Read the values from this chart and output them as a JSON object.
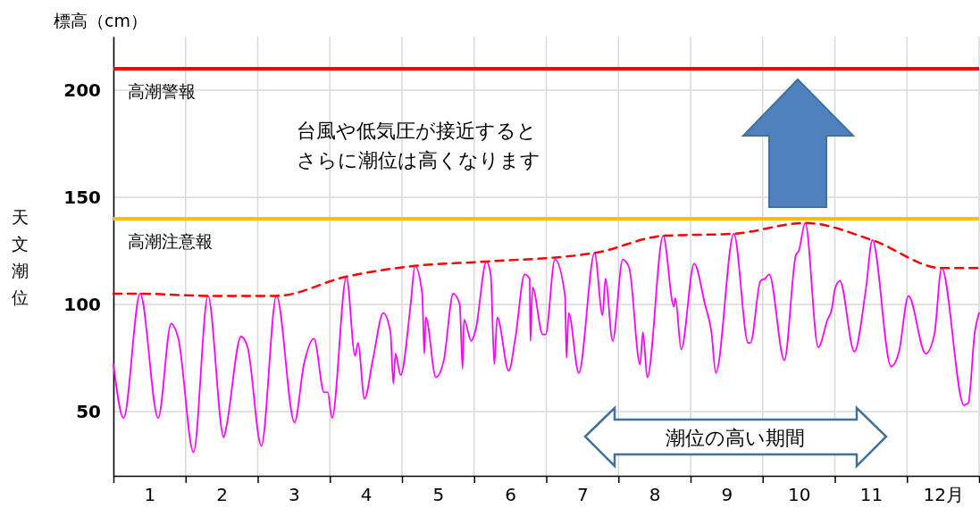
{
  "chart_data": {
    "type": "line",
    "ylabel": "天文潮位",
    "annotations": [
      "標高（cm）",
      "台風や低気圧が接近すると",
      "さらに潮位は高くなります",
      "潮位の高い期間"
    ],
    "xlim": [
      0,
      12
    ],
    "xticks": [
      {
        "value": 0,
        "label": null
      },
      {
        "value": 0.5,
        "label": "1"
      },
      {
        "value": 1,
        "label": null
      },
      {
        "value": 1.5,
        "label": "2"
      },
      {
        "value": 2,
        "label": null
      },
      {
        "value": 2.5,
        "label": "3"
      },
      {
        "value": 3,
        "label": null
      },
      {
        "value": 3.5,
        "label": "4"
      },
      {
        "value": 4,
        "label": null
      },
      {
        "value": 4.5,
        "label": "5"
      },
      {
        "value": 5,
        "label": null
      },
      {
        "value": 5.5,
        "label": "6"
      },
      {
        "value": 6,
        "label": null
      },
      {
        "value": 6.5,
        "label": "7"
      },
      {
        "value": 7,
        "label": null
      },
      {
        "value": 7.5,
        "label": "8"
      },
      {
        "value": 8,
        "label": null
      },
      {
        "value": 8.5,
        "label": "9"
      },
      {
        "value": 9,
        "label": null
      },
      {
        "value": 9.5,
        "label": "10"
      },
      {
        "value": 10,
        "label": null
      },
      {
        "value": 10.5,
        "label": "11"
      },
      {
        "value": 11,
        "label": null
      },
      {
        "value": 11.5,
        "label": "12月"
      },
      {
        "value": 12,
        "label": null
      }
    ],
    "ylim": [
      20,
      225
    ],
    "yticks": [
      50,
      100,
      150,
      200
    ],
    "grid": true,
    "ref_lines": [
      {
        "axis": "y",
        "value": 210,
        "label": "高潮警報",
        "color": "#ff0000"
      },
      {
        "axis": "y",
        "value": 140,
        "label": "高潮注意報",
        "color": "#ffc000"
      }
    ],
    "series": [
      {
        "color": "#ff00ff",
        "x": [
          0,
          0.14,
          0.37,
          0.62,
          0.8,
          0.9,
          1.11,
          1.31,
          1.53,
          1.56,
          1.77,
          1.86,
          2.05,
          2.26,
          2.51,
          2.64,
          2.78,
          2.92,
          2.97,
          3.03,
          3.23,
          3.35,
          3.39,
          3.48,
          3.6,
          3.74,
          3.84,
          3.88,
          3.91,
          3.98,
          4.12,
          4.18,
          4.28,
          4.31,
          4.33,
          4.47,
          4.58,
          4.71,
          4.8,
          4.84,
          4.86,
          4.96,
          5.02,
          5.17,
          5.23,
          5.28,
          5.32,
          5.48,
          5.57,
          5.7,
          5.77,
          5.78,
          5.81,
          5.95,
          5.99,
          6.12,
          6.26,
          6.28,
          6.31,
          6.45,
          6.67,
          6.78,
          6.82,
          6.92,
          7.06,
          7.15,
          7.3,
          7.34,
          7.4,
          7.62,
          7.77,
          7.79,
          7.87,
          8.05,
          8.2,
          8.29,
          8.35,
          8.6,
          8.8,
          8.83,
          8.97,
          9.03,
          9.09,
          9.3,
          9.46,
          9.5,
          9.59,
          9.77,
          9.9,
          9.96,
          10,
          10.07,
          10.27,
          10.43,
          10.52,
          10.78,
          10.89,
          11.02,
          11.26,
          11.38,
          11.48,
          11.79,
          11.85,
          11.94,
          12
        ],
        "values": [
          72,
          47,
          105,
          47,
          91,
          84,
          31,
          104,
          38,
          42,
          85,
          80,
          34,
          104,
          45,
          72,
          84,
          59,
          59,
          47,
          113,
          76,
          82,
          56,
          75,
          96,
          87,
          63,
          77,
          67,
          100,
          118,
          105,
          77,
          94,
          66,
          74,
          105,
          100,
          70,
          93,
          83,
          88,
          120,
          114,
          72,
          94,
          69,
          84,
          114,
          112,
          83,
          108,
          86,
          86,
          121,
          104,
          75,
          96,
          68,
          124,
          95,
          112,
          83,
          121,
          117,
          72,
          87,
          66,
          132,
          99,
          103,
          79,
          119,
          100,
          87,
          68,
          133,
          82,
          82,
          111,
          112,
          114,
          74,
          123,
          125,
          138,
          80,
          93,
          98,
          107,
          111,
          78,
          107,
          130,
          71,
          78,
          104,
          77,
          86,
          117,
          53,
          54,
          87,
          96
        ]
      },
      {
        "color": "#ff0000",
        "line_style": "dashed",
        "x": [
          0,
          0.37,
          1.31,
          2.26,
          3.23,
          4.18,
          5.17,
          6.67,
          7.62,
          8.6,
          9.59,
          10.52,
          11.48,
          12
        ],
        "values": [
          105,
          105,
          104,
          104,
          113,
          118,
          120,
          124,
          132,
          133,
          138,
          130,
          117,
          117
        ]
      }
    ]
  }
}
